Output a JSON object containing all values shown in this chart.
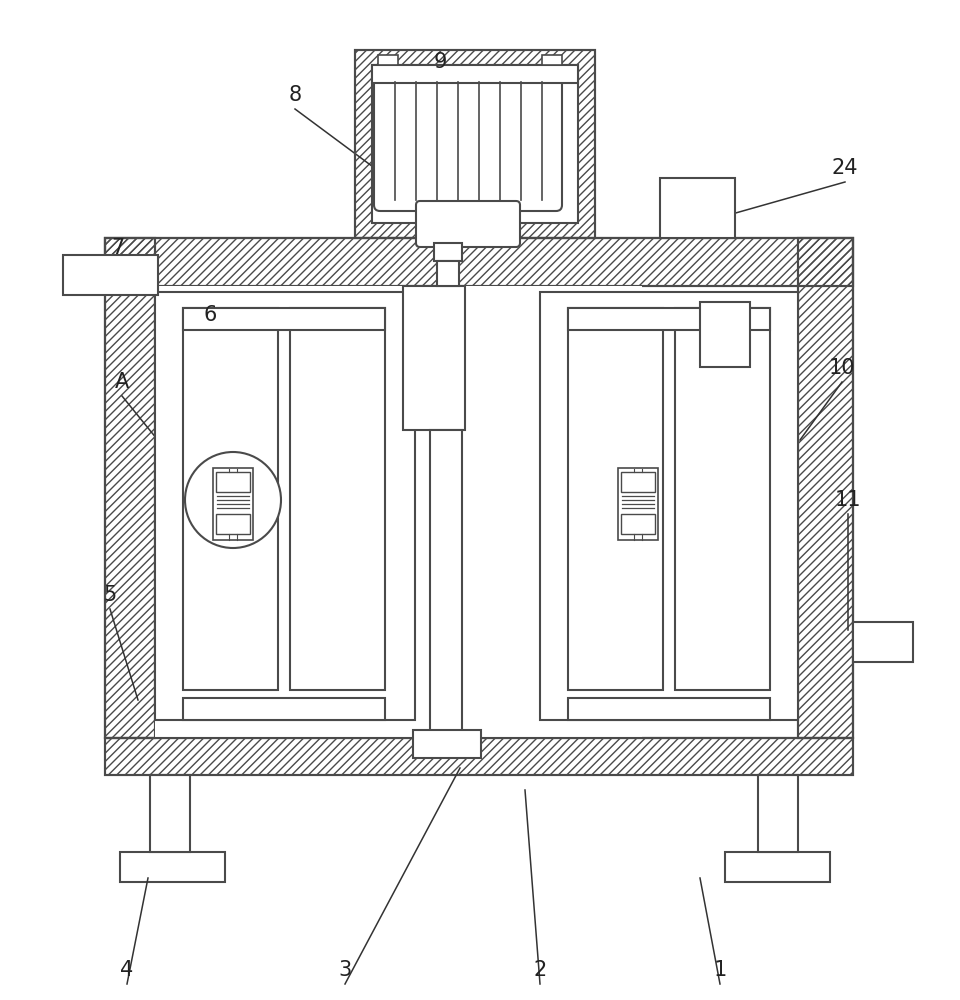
{
  "bg": "#ffffff",
  "lc": "#4a4a4a",
  "ac": "#333333",
  "lw": 1.5,
  "alw": 1.1,
  "fs": 14,
  "annotations": [
    [
      "1",
      720,
      970,
      700,
      878
    ],
    [
      "2",
      540,
      970,
      525,
      790
    ],
    [
      "3",
      345,
      970,
      460,
      768
    ],
    [
      "4",
      127,
      970,
      148,
      878
    ],
    [
      "5",
      110,
      595,
      138,
      700
    ],
    [
      "6",
      210,
      315,
      245,
      385
    ],
    [
      "7",
      118,
      248,
      138,
      272
    ],
    [
      "8",
      295,
      95,
      388,
      178
    ],
    [
      "9",
      440,
      62,
      455,
      98
    ],
    [
      "10",
      842,
      368,
      800,
      440
    ],
    [
      "11",
      848,
      500,
      848,
      630
    ],
    [
      "24",
      845,
      168,
      718,
      218
    ],
    [
      "A",
      122,
      382,
      170,
      455
    ]
  ]
}
